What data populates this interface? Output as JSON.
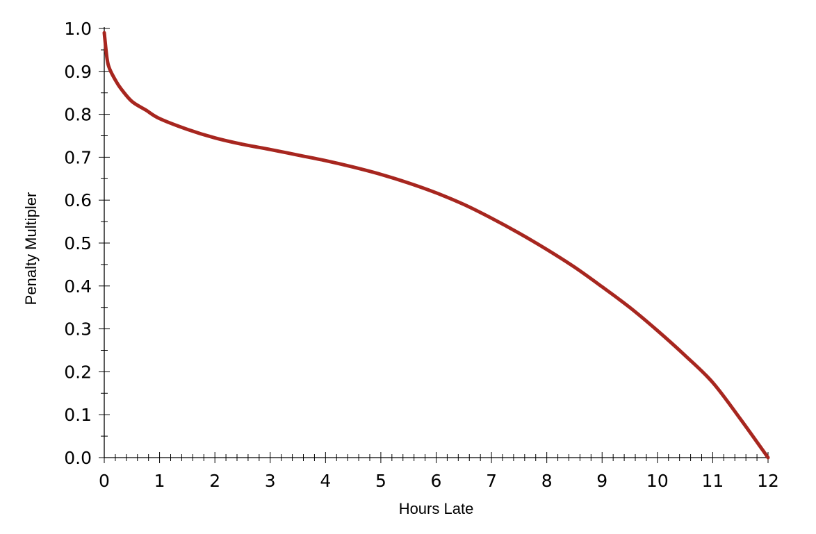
{
  "chart_data": {
    "type": "line",
    "title": "",
    "xlabel": "Hours Late",
    "ylabel": "Penalty Multipler",
    "xlim": [
      0,
      12
    ],
    "ylim": [
      0,
      1
    ],
    "x_ticks": [
      0,
      1,
      2,
      3,
      4,
      5,
      6,
      7,
      8,
      9,
      10,
      11,
      12
    ],
    "x_tick_labels": [
      "0",
      "1",
      "2",
      "3",
      "4",
      "5",
      "6",
      "7",
      "8",
      "9",
      "10",
      "11",
      "12"
    ],
    "x_minor_step": 0.2,
    "y_ticks": [
      0,
      0.1,
      0.2,
      0.3,
      0.4,
      0.5,
      0.6,
      0.7,
      0.8,
      0.9,
      1.0
    ],
    "y_tick_labels": [
      "0.0",
      "0.1",
      "0.2",
      "0.3",
      "0.4",
      "0.5",
      "0.6",
      "0.7",
      "0.8",
      "0.9",
      "1.0"
    ],
    "y_minor_step": 0.05,
    "grid": false,
    "line_color": "#a7261f",
    "series": [
      {
        "x": [
          0,
          0.05,
          0.1,
          0.2,
          0.3,
          0.5,
          0.75,
          1,
          1.5,
          2,
          2.5,
          3,
          3.5,
          4,
          4.5,
          5,
          5.5,
          6,
          6.5,
          7,
          7.5,
          8,
          8.5,
          9,
          9.5,
          10,
          10.5,
          11,
          11.5,
          12
        ],
        "y": [
          0.99,
          0.93,
          0.905,
          0.88,
          0.86,
          0.83,
          0.81,
          0.79,
          0.765,
          0.745,
          0.73,
          0.718,
          0.705,
          0.692,
          0.677,
          0.66,
          0.64,
          0.617,
          0.59,
          0.558,
          0.523,
          0.485,
          0.444,
          0.398,
          0.35,
          0.296,
          0.238,
          0.175,
          0.09,
          0.0
        ]
      }
    ]
  }
}
